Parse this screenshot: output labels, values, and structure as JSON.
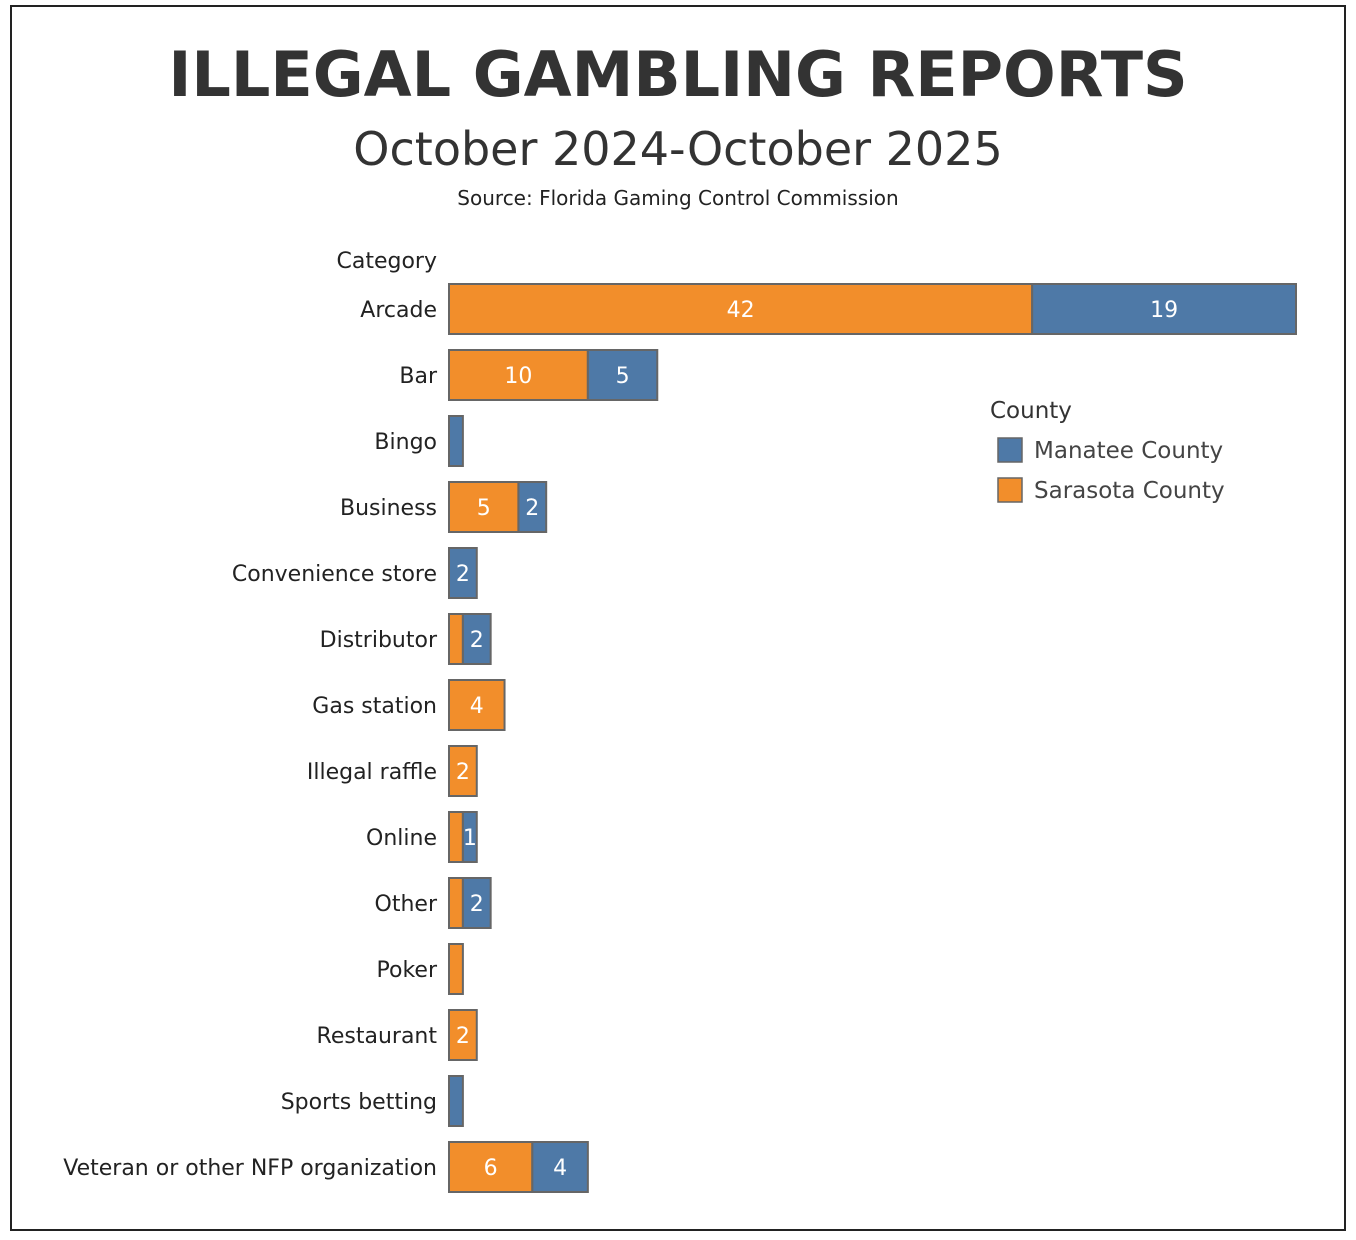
{
  "chart_data": {
    "type": "bar",
    "orientation": "horizontal",
    "stacked": true,
    "title": "ILLEGAL GAMBLING REPORTS",
    "subtitle": "October 2024-October 2025",
    "source": "Source: Florida Gaming Control Commission",
    "ylabel": "Category",
    "xlim": [
      0,
      61
    ],
    "grid": false,
    "legend": {
      "title": "County",
      "placement": "right",
      "entries": [
        "Manatee County",
        "Sarasota County"
      ]
    },
    "categories": [
      "Arcade",
      "Bar",
      "Bingo",
      "Business",
      "Convenience store",
      "Distributor",
      "Gas station",
      "Illegal raffle",
      "Online",
      "Other",
      "Poker",
      "Restaurant",
      "Sports betting",
      "Veteran or other NFP organization"
    ],
    "series": [
      {
        "name": "Sarasota County",
        "color": "#F28E2B",
        "values": [
          42,
          10,
          0,
          5,
          0,
          1,
          4,
          2,
          1,
          1,
          1,
          2,
          0,
          6
        ],
        "label_shown": [
          true,
          true,
          false,
          true,
          false,
          false,
          true,
          true,
          false,
          false,
          false,
          true,
          false,
          true
        ]
      },
      {
        "name": "Manatee County",
        "color": "#4E79A7",
        "values": [
          19,
          5,
          1,
          2,
          2,
          2,
          0,
          0,
          1,
          2,
          0,
          0,
          1,
          4
        ],
        "label_shown": [
          true,
          true,
          false,
          true,
          true,
          true,
          false,
          false,
          true,
          true,
          false,
          false,
          false,
          true
        ]
      }
    ]
  }
}
